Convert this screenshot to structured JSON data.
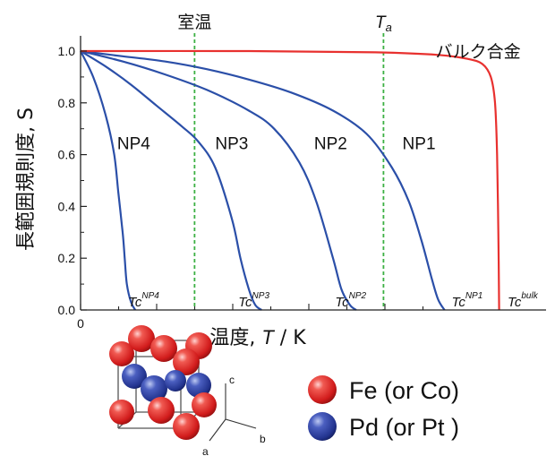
{
  "chart_data": {
    "type": "line",
    "xlabel": "温度, T / K",
    "ylabel": "長範囲規則度, S",
    "xlim": [
      0,
      1
    ],
    "ylim": [
      0,
      1
    ],
    "x_ticks": [
      {
        "value": 0,
        "label": "0"
      }
    ],
    "y_ticks": [
      {
        "value": 0.0,
        "label": "0.0"
      },
      {
        "value": 0.2,
        "label": "0.2"
      },
      {
        "value": 0.4,
        "label": "0.4"
      },
      {
        "value": 0.6,
        "label": "0.6"
      },
      {
        "value": 0.8,
        "label": "0.8"
      },
      {
        "value": 1.0,
        "label": "1.0"
      }
    ],
    "vertical_markers": [
      {
        "name": "room-temp",
        "label": "室温",
        "x": 0.271,
        "color": "#3cb043"
      },
      {
        "name": "ta",
        "label": "T",
        "sub": "a",
        "x": 0.72,
        "color": "#3cb043"
      }
    ],
    "series": [
      {
        "name": "NP4",
        "color": "#2b4fa8",
        "x": [
          0,
          0.03,
          0.06,
          0.08,
          0.09,
          0.1,
          0.105,
          0.11,
          0.12,
          0.13
        ],
        "y": [
          1.0,
          0.9,
          0.75,
          0.6,
          0.45,
          0.3,
          0.2,
          0.1,
          0.03,
          0.0
        ]
      },
      {
        "name": "NP3",
        "color": "#2b4fa8",
        "x": [
          0,
          0.06,
          0.12,
          0.18,
          0.24,
          0.28,
          0.32,
          0.36,
          0.38,
          0.4,
          0.415,
          0.43
        ],
        "y": [
          1.0,
          0.94,
          0.87,
          0.79,
          0.71,
          0.65,
          0.55,
          0.35,
          0.2,
          0.08,
          0.02,
          0.0
        ]
      },
      {
        "name": "NP2",
        "color": "#2b4fa8",
        "x": [
          0,
          0.1,
          0.2,
          0.3,
          0.4,
          0.46,
          0.52,
          0.56,
          0.6,
          0.62,
          0.64,
          0.655
        ],
        "y": [
          1.0,
          0.96,
          0.91,
          0.85,
          0.77,
          0.7,
          0.57,
          0.42,
          0.2,
          0.08,
          0.02,
          0.0
        ]
      },
      {
        "name": "NP1",
        "color": "#2b4fa8",
        "x": [
          0,
          0.1,
          0.2,
          0.3,
          0.4,
          0.5,
          0.6,
          0.68,
          0.74,
          0.78,
          0.81,
          0.835,
          0.85,
          0.865
        ],
        "y": [
          1.0,
          0.98,
          0.96,
          0.93,
          0.89,
          0.84,
          0.77,
          0.68,
          0.55,
          0.42,
          0.27,
          0.12,
          0.04,
          0.0
        ]
      },
      {
        "name": "バルク合金",
        "color": "#e8312f",
        "x": [
          0,
          0.4,
          0.7,
          0.85,
          0.92,
          0.955,
          0.975,
          0.985,
          0.99,
          0.993,
          0.995
        ],
        "y": [
          1.0,
          1.0,
          0.995,
          0.985,
          0.97,
          0.95,
          0.9,
          0.8,
          0.6,
          0.3,
          0.0
        ]
      }
    ],
    "curve_labels": [
      {
        "text": "NP4",
        "x": 0.087,
        "y": 0.645
      },
      {
        "text": "NP3",
        "x": 0.32,
        "y": 0.645
      },
      {
        "text": "NP2",
        "x": 0.555,
        "y": 0.645
      },
      {
        "text": "NP1",
        "x": 0.765,
        "y": 0.645
      },
      {
        "text": "バルク合金",
        "x": 0.945,
        "y": 1.0
      }
    ],
    "tc_labels": [
      {
        "base": "Tc",
        "sup": "NP4",
        "x": 0.113
      },
      {
        "base": "Tc",
        "sup": "NP3",
        "x": 0.375
      },
      {
        "base": "Tc",
        "sup": "NP2",
        "x": 0.605
      },
      {
        "base": "Tc",
        "sup": "NP1",
        "x": 0.882
      },
      {
        "base": "Tc",
        "sup": "bulk",
        "x": 1.015
      }
    ]
  },
  "legend": {
    "items": [
      {
        "label": "Fe (or Co)",
        "color": "#e8282a"
      },
      {
        "label": "Pd (or Pt )",
        "color": "#2a3f9e"
      }
    ],
    "axes_letters": {
      "a": "a",
      "b": "b",
      "c": "c"
    }
  }
}
